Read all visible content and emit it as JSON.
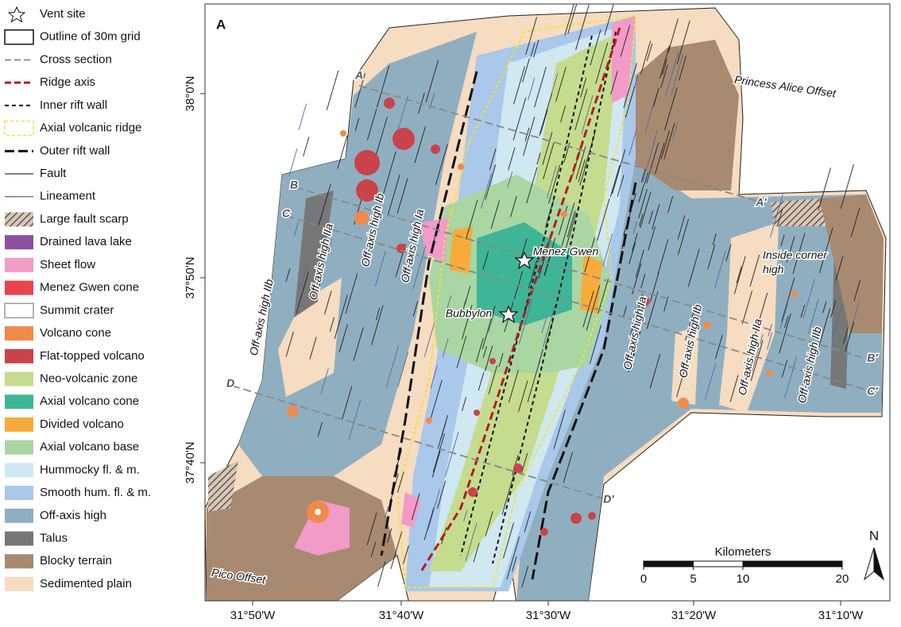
{
  "legend": [
    "Vent site",
    "Outline of 30m grid",
    "Cross section",
    "Ridge axis",
    "Inner rift wall",
    "Axial volcanic ridge",
    "Outer rift wall",
    "Fault",
    "Lineament",
    "Large fault scarp",
    "Drained lava lake",
    "Sheet flow",
    "Menez Gwen cone",
    "Summit crater",
    "Volcano cone",
    "Flat-topped volcano",
    "Neo-volcanic zone",
    "Axial volcano cone",
    "Divided volcano",
    "Axial volcano base",
    "Hummocky fl. & m.",
    "Smooth hum. fl. & m.",
    "Off-axis high",
    "Talus",
    "Blocky terrain",
    "Sedimented plain"
  ],
  "panel_label": "A",
  "lat_labels": [
    "38°0'N",
    "37°50'N",
    "37°40'N"
  ],
  "lon_labels": [
    "31°50'W",
    "31°40'W",
    "31°30'W",
    "31°20'W",
    "31°10'W"
  ],
  "places": [
    "Princess Alice Offset",
    "Menez Gwen",
    "Bubbylon",
    "Inside corner high",
    "Pico Offset"
  ],
  "off_axis_labels": [
    "Off-axis high IIb",
    "Off-axis high IIa",
    "Off-axis high Ib",
    "Off-axis high Ia",
    "Off-axis high Ia",
    "Off-axis high Ib",
    "Off-axis high IIa",
    "Off-axis high IIb"
  ],
  "cross_sections": [
    "A",
    "A'",
    "B",
    "B'",
    "C",
    "C'",
    "D",
    "D'"
  ],
  "scale": {
    "title": "Kilometers",
    "ticks": [
      0,
      5,
      10,
      20
    ]
  },
  "north": "N"
}
